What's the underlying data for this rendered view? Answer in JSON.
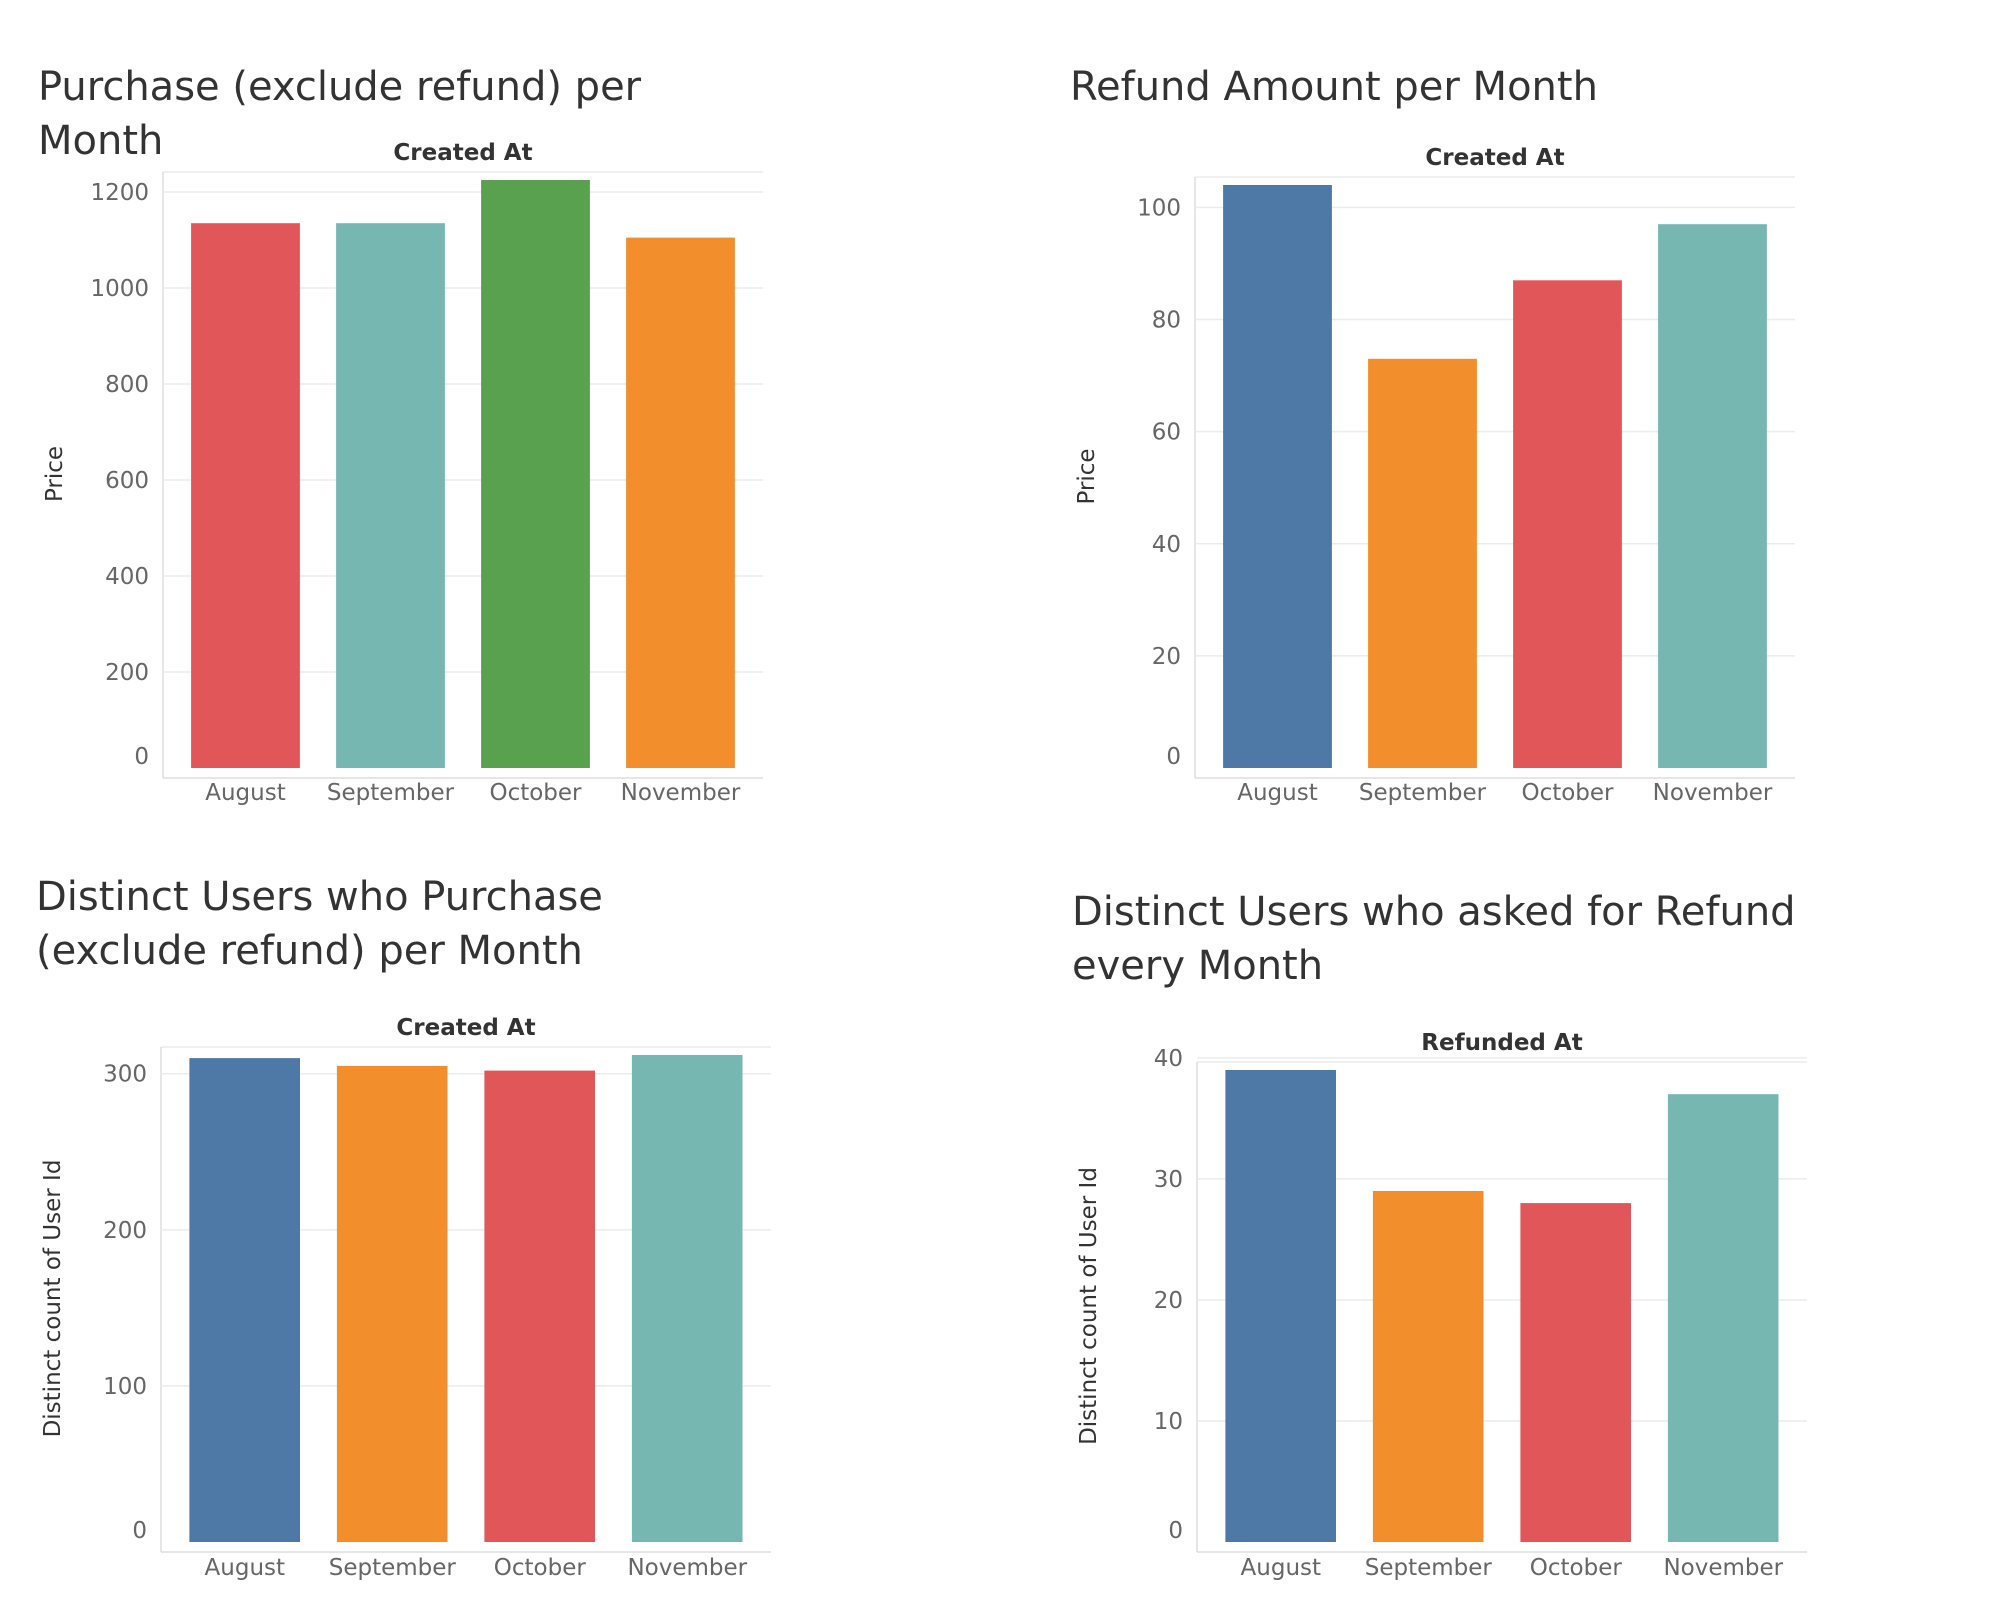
{
  "colors": {
    "blue": "#4e79a7",
    "orange": "#f28e2b",
    "red": "#e15759",
    "teal": "#76b7b2",
    "green": "#59a14f",
    "grid": "#ececec",
    "text": "#333333",
    "tick_text": "#666666"
  },
  "chart_data": [
    {
      "type": "bar",
      "title": "Purchase (exclude refund) per Month",
      "column_header": "Created At",
      "xlabel": "",
      "ylabel": "Price",
      "categories": [
        "August",
        "September",
        "October",
        "November"
      ],
      "values": [
        1135,
        1135,
        1225,
        1105
      ],
      "bar_colors": [
        "#e15759",
        "#76b7b2",
        "#59a14f",
        "#f28e2b"
      ],
      "ylim": [
        0,
        1225
      ],
      "yticks": [
        0,
        200,
        400,
        600,
        800,
        1000,
        1200
      ],
      "grid": true,
      "legend": "none"
    },
    {
      "type": "bar",
      "title": "Refund Amount per Month",
      "column_header": "Created At",
      "xlabel": "",
      "ylabel": "Price",
      "categories": [
        "August",
        "September",
        "October",
        "November"
      ],
      "values": [
        104,
        73,
        87,
        97
      ],
      "bar_colors": [
        "#4e79a7",
        "#f28e2b",
        "#e15759",
        "#76b7b2"
      ],
      "ylim": [
        0,
        104
      ],
      "yticks": [
        0,
        20,
        40,
        60,
        80,
        100
      ],
      "grid": true,
      "legend": "none"
    },
    {
      "type": "bar",
      "title": "Distinct Users who Purchase (exclude refund) per Month",
      "column_header": "Created At",
      "xlabel": "",
      "ylabel": "Distinct count of User Id",
      "categories": [
        "August",
        "September",
        "October",
        "November"
      ],
      "values": [
        310,
        305,
        302,
        312
      ],
      "bar_colors": [
        "#4e79a7",
        "#f28e2b",
        "#e15759",
        "#76b7b2"
      ],
      "ylim": [
        0,
        312
      ],
      "yticks": [
        0,
        100,
        200,
        300
      ],
      "grid": true,
      "legend": "none"
    },
    {
      "type": "bar",
      "title": "Distinct Users who asked for Refund every Month",
      "column_header": "Refunded At",
      "xlabel": "",
      "ylabel": "Distinct count of User Id",
      "categories": [
        "August",
        "September",
        "October",
        "November"
      ],
      "values": [
        39,
        29,
        28,
        37
      ],
      "bar_colors": [
        "#4e79a7",
        "#f28e2b",
        "#e15759",
        "#76b7b2"
      ],
      "ylim": [
        0,
        39
      ],
      "yticks": [
        0,
        10,
        20,
        30,
        40
      ],
      "grid": true,
      "legend": "none"
    }
  ]
}
